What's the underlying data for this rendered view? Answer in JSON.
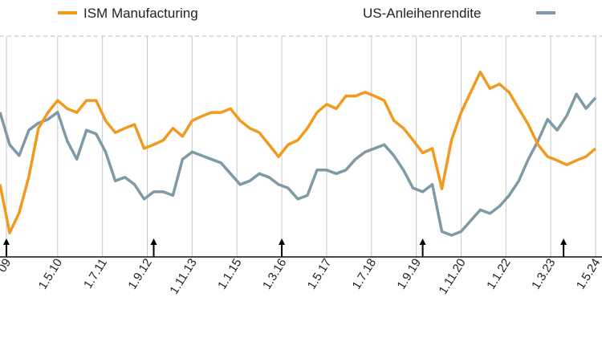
{
  "chart_data": {
    "type": "line",
    "x": [
      "2008-11",
      "2009-02",
      "2009-05",
      "2009-08",
      "2009-11",
      "2010-02",
      "2010-05",
      "2010-08",
      "2010-11",
      "2011-02",
      "2011-05",
      "2011-08",
      "2011-11",
      "2012-02",
      "2012-05",
      "2012-08",
      "2012-11",
      "2013-02",
      "2013-05",
      "2013-08",
      "2013-11",
      "2014-02",
      "2014-05",
      "2014-08",
      "2014-11",
      "2015-02",
      "2015-05",
      "2015-08",
      "2015-11",
      "2016-02",
      "2016-05",
      "2016-08",
      "2016-11",
      "2017-02",
      "2017-05",
      "2017-08",
      "2017-11",
      "2018-02",
      "2018-05",
      "2018-08",
      "2018-11",
      "2019-02",
      "2019-05",
      "2019-08",
      "2019-11",
      "2020-02",
      "2020-05",
      "2020-08",
      "2020-11",
      "2021-02",
      "2021-05",
      "2021-08",
      "2021-11",
      "2022-02",
      "2022-05",
      "2022-08",
      "2022-11",
      "2023-02",
      "2023-05",
      "2023-08",
      "2023-11",
      "2024-02",
      "2024-05"
    ],
    "series": [
      {
        "name": "ISM Manufacturing",
        "color": "#f29a1f",
        "values": [
          42.5,
          34.8,
          38.0,
          43.7,
          51.4,
          53.9,
          55.8,
          54.5,
          53.9,
          55.8,
          55.8,
          52.6,
          50.7,
          51.4,
          52.0,
          48.2,
          48.8,
          49.5,
          51.4,
          50.1,
          52.6,
          53.3,
          53.9,
          53.9,
          54.5,
          52.6,
          51.4,
          50.7,
          48.8,
          46.9,
          48.8,
          49.5,
          51.4,
          53.9,
          55.2,
          54.5,
          56.5,
          56.5,
          57.1,
          56.5,
          55.8,
          52.6,
          51.4,
          49.5,
          47.5,
          48.2,
          41.8,
          49.5,
          53.9,
          57.1,
          60.3,
          57.7,
          58.4,
          57.1,
          54.5,
          52.0,
          48.8,
          46.9,
          46.3,
          45.6,
          46.3,
          46.9,
          48.2
        ]
      },
      {
        "name": "US-Anleihenrendite",
        "color": "#7f9aa7",
        "axis": "y2",
        "values": [
          4.0,
          3.1,
          2.8,
          3.5,
          3.7,
          3.8,
          4.0,
          3.2,
          2.7,
          3.5,
          3.4,
          2.9,
          2.1,
          2.2,
          2.0,
          1.6,
          1.8,
          1.8,
          1.7,
          2.7,
          2.9,
          2.8,
          2.7,
          2.6,
          2.3,
          2.0,
          2.1,
          2.3,
          2.2,
          2.0,
          1.9,
          1.6,
          1.7,
          2.4,
          2.4,
          2.3,
          2.4,
          2.7,
          2.9,
          3.0,
          3.1,
          2.8,
          2.4,
          1.9,
          1.8,
          2.0,
          0.7,
          0.6,
          0.7,
          1.0,
          1.3,
          1.2,
          1.4,
          1.7,
          2.1,
          2.7,
          3.2,
          3.8,
          3.5,
          3.9,
          4.5,
          4.1,
          4.4
        ]
      }
    ],
    "xlim": [
      "2008-11",
      "2024-07"
    ],
    "xticks": [
      {
        "value": "2009-01",
        "label": "09"
      },
      {
        "value": "2010-05",
        "label": "1.5.10"
      },
      {
        "value": "2011-07",
        "label": "1.7.11"
      },
      {
        "value": "2012-09",
        "label": "1.9.12"
      },
      {
        "value": "2013-11",
        "label": "1.11.13"
      },
      {
        "value": "2015-01",
        "label": "1.1.15"
      },
      {
        "value": "2016-03",
        "label": "1.3.16"
      },
      {
        "value": "2017-05",
        "label": "1.5.17"
      },
      {
        "value": "2018-07",
        "label": "1.7.18"
      },
      {
        "value": "2019-09",
        "label": "1.9.19"
      },
      {
        "value": "2020-11",
        "label": "1.11.20"
      },
      {
        "value": "2022-01",
        "label": "1.1.22"
      },
      {
        "value": "2023-03",
        "label": "1.3.23"
      },
      {
        "value": "2024-05",
        "label": "1.5.24"
      }
    ],
    "ylim": [
      31,
      66
    ],
    "y2lim": [
      0,
      6.1
    ],
    "markers": [
      "2009-01",
      "2012-11",
      "2016-03",
      "2019-11",
      "2023-07"
    ],
    "grid": true
  }
}
